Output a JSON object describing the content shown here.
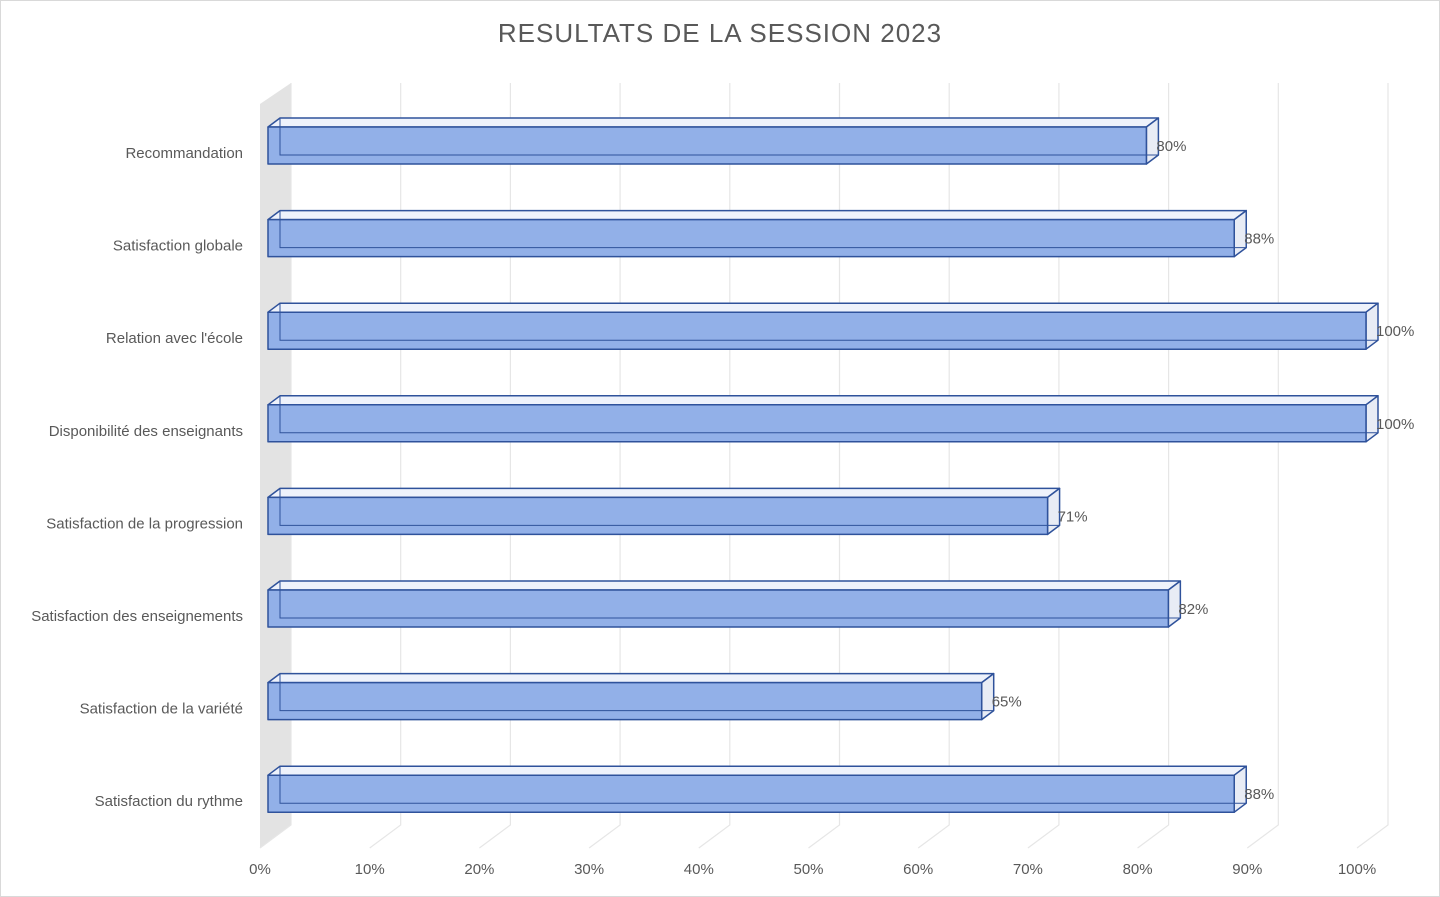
{
  "chart_data": {
    "type": "bar3d",
    "title": "RESULTATS DE LA SESSION 2023",
    "categories": [
      "Recommandation",
      "Satisfaction globale",
      "Relation avec l'école",
      "Disponibilité des enseignants",
      "Satisfaction de la progression",
      "Satisfaction des enseignements",
      "Satisfaction de la variété",
      "Satisfaction du rythme"
    ],
    "values": [
      80,
      88,
      100,
      100,
      71,
      82,
      65,
      88
    ],
    "value_labels": [
      "80%",
      "88%",
      "100%",
      "100%",
      "71%",
      "82%",
      "65%",
      "88%"
    ],
    "color": "#92b0e8",
    "edge_color": "#2f529b",
    "xlim": [
      0,
      100
    ],
    "xticks": [
      {
        "value": 0,
        "label": "0%"
      },
      {
        "value": 10,
        "label": "10%"
      },
      {
        "value": 20,
        "label": "20%"
      },
      {
        "value": 30,
        "label": "30%"
      },
      {
        "value": 40,
        "label": "40%"
      },
      {
        "value": 50,
        "label": "50%"
      },
      {
        "value": 60,
        "label": "60%"
      },
      {
        "value": 70,
        "label": "70%"
      },
      {
        "value": 80,
        "label": "80%"
      },
      {
        "value": 90,
        "label": "90%"
      },
      {
        "value": 100,
        "label": "100%"
      }
    ],
    "grid": true
  }
}
